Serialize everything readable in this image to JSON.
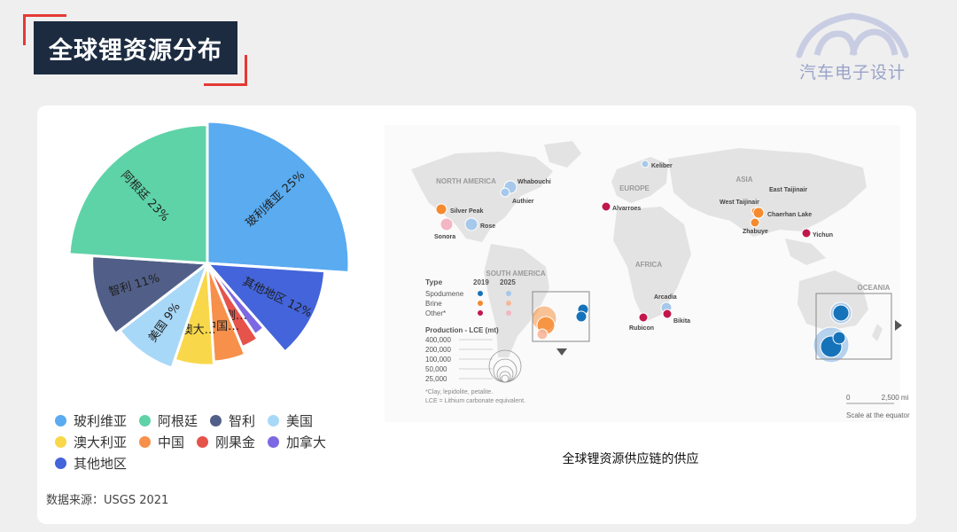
{
  "page": {
    "title": "全球锂资源分布",
    "logo_text": "汽车电子设计",
    "source": "数据来源：USGS 2021"
  },
  "chart_data": [
    {
      "type": "pie",
      "slices": [
        {
          "name": "玻利维亚",
          "value": 25,
          "label": "玻利维亚 25%",
          "color": "#5aabf0"
        },
        {
          "name": "其他地区",
          "value": 12,
          "label": "其他地区 12%",
          "color": "#4364da"
        },
        {
          "name": "加拿大",
          "value": 2,
          "label": "",
          "color": "#7c68e2"
        },
        {
          "name": "刚果金",
          "value": 3,
          "label": "刚…",
          "color": "#e5534b"
        },
        {
          "name": "中国",
          "value": 5,
          "label": "中国…",
          "color": "#f7904a"
        },
        {
          "name": "澳大利亚",
          "value": 6,
          "label": "澳大…",
          "color": "#f8d74a"
        },
        {
          "name": "美国",
          "value": 9,
          "label": "美国 9%",
          "color": "#a8d8f8"
        },
        {
          "name": "智利",
          "value": 11,
          "label": "智利 11%",
          "color": "#515f88"
        },
        {
          "name": "阿根廷",
          "value": 23,
          "label": "阿根廷 23%",
          "color": "#5ed3a7"
        }
      ],
      "legend": [
        {
          "name": "玻利维亚",
          "color": "#5aabf0"
        },
        {
          "name": "阿根廷",
          "color": "#5ed3a7"
        },
        {
          "name": "智利",
          "color": "#515f88"
        },
        {
          "name": "美国",
          "color": "#a8d8f8"
        },
        {
          "name": "澳大利亚",
          "color": "#f8d74a"
        },
        {
          "name": "中国",
          "color": "#f7904a"
        },
        {
          "name": "刚果金",
          "color": "#e5534b"
        },
        {
          "name": "加拿大",
          "color": "#7c68e2"
        },
        {
          "name": "其他地区",
          "color": "#4364da"
        }
      ],
      "legend_placement": "bottom"
    },
    {
      "type": "map",
      "caption": "全球锂资源供应链的供应",
      "regions": [
        "NORTH AMERICA",
        "EUROPE",
        "ASIA",
        "SOUTH AMERICA",
        "AFRICA",
        "OCEANIA"
      ],
      "sites": [
        {
          "name": "Whabouchi",
          "kind": "spodumene-2025",
          "color": "#a6c8ea"
        },
        {
          "name": "Authier",
          "kind": "spodumene-2025",
          "color": "#a6c8ea"
        },
        {
          "name": "Silver Peak",
          "kind": "brine-2019",
          "color": "#f58a2f"
        },
        {
          "name": "Sonora",
          "kind": "other-2025",
          "color": "#f2b6c5"
        },
        {
          "name": "Rose",
          "kind": "spodumene-2025",
          "color": "#a6c8ea"
        },
        {
          "name": "Keliber",
          "kind": "spodumene-2025",
          "color": "#a6c8ea"
        },
        {
          "name": "Alvarroes",
          "kind": "other-2019",
          "color": "#c1184c"
        },
        {
          "name": "West Taijinair",
          "kind": "brine-2019",
          "color": "#f58a2f"
        },
        {
          "name": "East Taijinair",
          "kind": "brine-2019",
          "color": "#f58a2f"
        },
        {
          "name": "Chaerhan Lake",
          "kind": "brine-2019",
          "color": "#f58a2f"
        },
        {
          "name": "Zhabuye",
          "kind": "brine-2019",
          "color": "#f58a2f"
        },
        {
          "name": "Yichun",
          "kind": "other-2019",
          "color": "#c1184c"
        },
        {
          "name": "Arcadia",
          "kind": "spodumene-2025",
          "color": "#a6c8ea"
        },
        {
          "name": "Bikita",
          "kind": "other-2019",
          "color": "#c1184c"
        },
        {
          "name": "Rubicon",
          "kind": "other-2019",
          "color": "#c1184c"
        }
      ],
      "legend": {
        "type_header": "Type",
        "year_headers": [
          "2019",
          "2025"
        ],
        "rows": [
          {
            "label": "Spodumene",
            "c2019": "#1673b9",
            "c2025": "#a6c8ea"
          },
          {
            "label": "Brine",
            "c2019": "#f58a2f",
            "c2025": "#f6b79a"
          },
          {
            "label": "Other*",
            "c2019": "#c1184c",
            "c2025": "#f2b6c5"
          }
        ],
        "production_title": "Production - LCE (mt)",
        "production_values": [
          "400,000",
          "200,000",
          "100,000",
          "50,000",
          "25,000"
        ],
        "footnote1": "*Clay, lepidolite, petalite.",
        "footnote2": "LCE = Lithium carbonate equivalent."
      },
      "scale": {
        "start": "0",
        "end": "2,500 mi",
        "note": "Scale at the equator"
      }
    }
  ]
}
